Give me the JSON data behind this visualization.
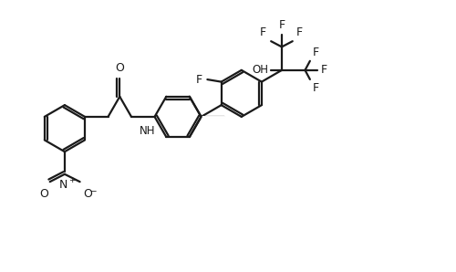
{
  "bg_color": "#ffffff",
  "line_color": "#1a1a1a",
  "line_width": 1.6,
  "font_size": 8.5,
  "fig_width": 5.0,
  "fig_height": 2.98,
  "xlim": [
    0,
    10
  ],
  "ylim": [
    0,
    5.96
  ]
}
